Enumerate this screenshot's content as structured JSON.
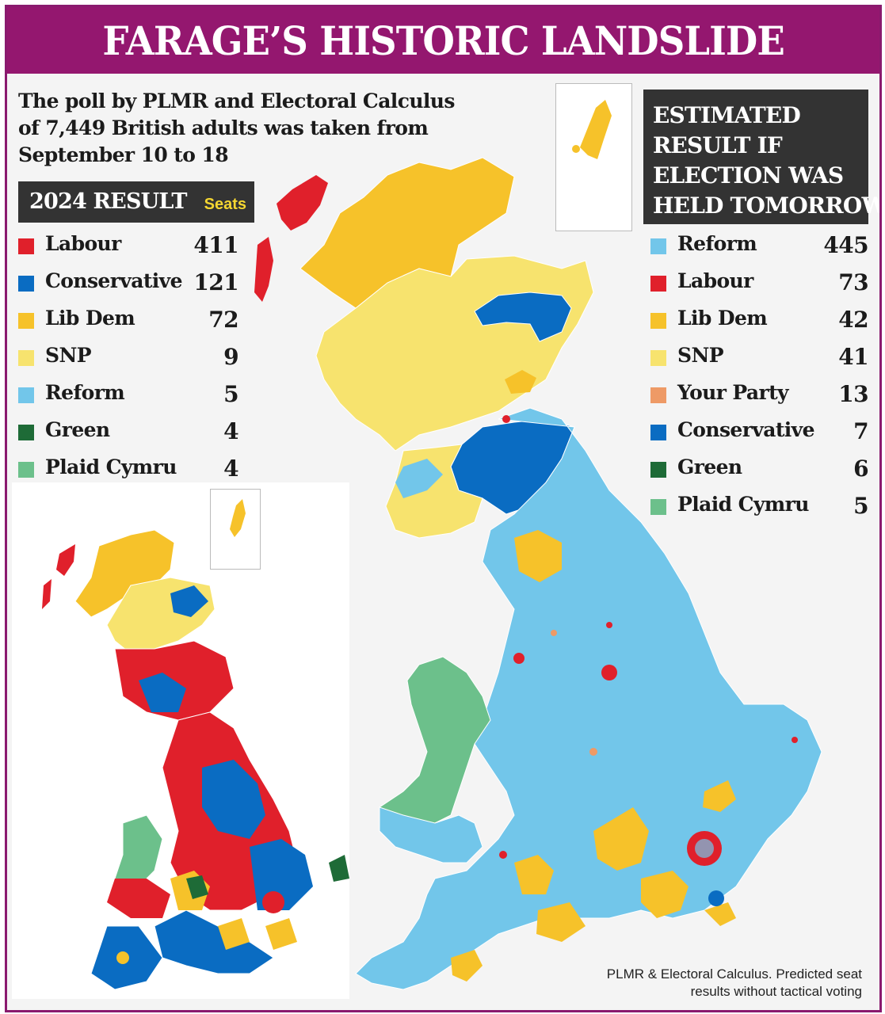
{
  "headline": "FARAGE’S HISTORIC LANDSLIDE",
  "intro": "The poll by PLMR and Electoral Calculus of 7,449 British adults was taken from September 10 to 18",
  "result_2024": {
    "title": "2024 RESULT",
    "seats_label": "Seats",
    "parties": [
      {
        "name": "Labour",
        "seats": "411",
        "color": "#e0202b"
      },
      {
        "name": "Conservative",
        "seats": "121",
        "color": "#0a6cc2"
      },
      {
        "name": "Lib Dem",
        "seats": "72",
        "color": "#f6c22a"
      },
      {
        "name": "SNP",
        "seats": "9",
        "color": "#f7e36e"
      },
      {
        "name": "Reform",
        "seats": "5",
        "color": "#72c6ea"
      },
      {
        "name": "Green",
        "seats": "4",
        "color": "#1e6b37"
      },
      {
        "name": "Plaid Cymru",
        "seats": "4",
        "color": "#6cc08b"
      }
    ]
  },
  "estimate": {
    "title_lines": [
      "ESTIMATED",
      "RESULT IF",
      "ELECTION WAS",
      "HELD TOMORROW"
    ],
    "parties": [
      {
        "name": "Reform",
        "seats": "445",
        "color": "#72c6ea"
      },
      {
        "name": "Labour",
        "seats": "73",
        "color": "#e0202b"
      },
      {
        "name": "Lib Dem",
        "seats": "42",
        "color": "#f6c22a"
      },
      {
        "name": "SNP",
        "seats": "41",
        "color": "#f7e36e"
      },
      {
        "name": "Your Party",
        "seats": "13",
        "color": "#ee9a66"
      },
      {
        "name": "Conservative",
        "seats": "7",
        "color": "#0a6cc2"
      },
      {
        "name": "Green",
        "seats": "6",
        "color": "#1e6b37"
      },
      {
        "name": "Plaid Cymru",
        "seats": "5",
        "color": "#6cc08b"
      }
    ]
  },
  "source": [
    "PLMR & Electoral Calculus. Predicted seat",
    "results without tactical voting"
  ],
  "colors": {
    "banner": "#94176f",
    "reform": "#72c6ea",
    "labour": "#e0202b",
    "conservative": "#0a6cc2",
    "libdem": "#f6c22a",
    "snp": "#f7e36e",
    "green": "#1e6b37",
    "plaid": "#6cc08b",
    "your_party": "#ee9a66"
  }
}
